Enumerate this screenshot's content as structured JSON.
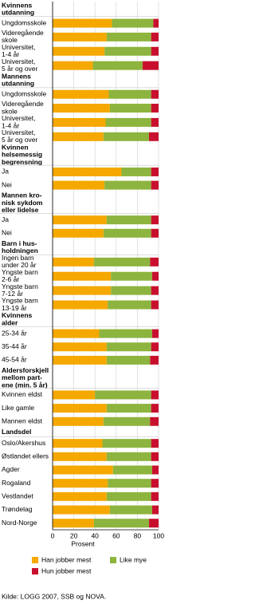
{
  "chart_data": {
    "type": "bar",
    "orientation": "horizontal",
    "stacked": true,
    "xlim": [
      0,
      100
    ],
    "xticks": [
      0,
      20,
      40,
      60,
      80,
      100
    ],
    "xlabel": "Prosent",
    "grid": true,
    "legend": [
      {
        "name": "Han jobber mest",
        "color": "#f5a800"
      },
      {
        "name": "Like mye",
        "color": "#8db43e"
      },
      {
        "name": "Hun jobber mest",
        "color": "#c8102e"
      }
    ],
    "source": "Kilde: LOGG 2007, SSB og NOVA.",
    "groups": [
      {
        "title": [
          "Kvinnens",
          "utdanning"
        ],
        "categories": [
          [
            "Ungdomsskole"
          ],
          [
            "Videregående",
            "skole"
          ],
          [
            "Universitet,",
            "1-4 år"
          ],
          [
            "Universitet,",
            "5 år og over"
          ]
        ],
        "series": [
          [
            56,
            51,
            49,
            38
          ],
          [
            39,
            42,
            44,
            47
          ],
          [
            5,
            7,
            7,
            15
          ]
        ]
      },
      {
        "title": [
          "Mannens",
          "utdanning"
        ],
        "categories": [
          [
            "Ungdomsskole"
          ],
          [
            "Videregående",
            "skole"
          ],
          [
            "Universitet,",
            "1-4 år"
          ],
          [
            "Universitet,",
            "5 år og over"
          ]
        ],
        "series": [
          [
            53,
            54,
            50,
            48
          ],
          [
            40,
            39,
            43,
            43
          ],
          [
            7,
            7,
            7,
            9
          ]
        ]
      },
      {
        "title": [
          "Kvinnen",
          "helsemessig",
          "begrensning"
        ],
        "categories": [
          [
            "Ja"
          ],
          [
            "Nei"
          ]
        ],
        "series": [
          [
            65,
            49
          ],
          [
            28,
            44
          ],
          [
            7,
            7
          ]
        ]
      },
      {
        "title": [
          "Mannen kro-",
          "nisk sykdom",
          "eller lidelse"
        ],
        "categories": [
          [
            "Ja"
          ],
          [
            "Nei"
          ]
        ],
        "series": [
          [
            51,
            48
          ],
          [
            42,
            45
          ],
          [
            7,
            7
          ]
        ]
      },
      {
        "title": [
          "Barn i hus-",
          "holdningen"
        ],
        "categories": [
          [
            "Ingen barn",
            "under 20 år"
          ],
          [
            "Yngste barn",
            "2-6 år"
          ],
          [
            "Yngste barn",
            "7-12 år"
          ],
          [
            "Yngste barn",
            "13-19 år"
          ]
        ],
        "series": [
          [
            39,
            55,
            55,
            52
          ],
          [
            53,
            39,
            38,
            41
          ],
          [
            8,
            6,
            7,
            7
          ]
        ]
      },
      {
        "title": [
          "Kvinnens",
          "alder"
        ],
        "categories": [
          [
            "25-34 år"
          ],
          [
            "35-44 år"
          ],
          [
            "45-54 år"
          ]
        ],
        "series": [
          [
            44,
            51,
            51
          ],
          [
            50,
            42,
            41
          ],
          [
            6,
            7,
            8
          ]
        ]
      },
      {
        "title": [
          "Aldersforskjell",
          "mellom part-",
          "ene (min. 5 år)"
        ],
        "categories": [
          [
            "Kvinnen eldst"
          ],
          [
            "Like gamle"
          ],
          [
            "Mannen eldst"
          ]
        ],
        "series": [
          [
            40,
            51,
            48
          ],
          [
            53,
            42,
            44
          ],
          [
            7,
            7,
            8
          ]
        ]
      },
      {
        "title": [
          "Landsdel"
        ],
        "categories": [
          [
            "Oslo/Akershus"
          ],
          [
            "Østlandet ellers"
          ],
          [
            "Agder"
          ],
          [
            "Rogaland"
          ],
          [
            "Vestlandet"
          ],
          [
            "Trøndelag"
          ],
          [
            "Nord-Norge"
          ]
        ],
        "series": [
          [
            47,
            51,
            57,
            52,
            51,
            54,
            39
          ],
          [
            46,
            42,
            37,
            41,
            42,
            40,
            52
          ],
          [
            7,
            7,
            6,
            7,
            7,
            6,
            9
          ]
        ]
      }
    ]
  }
}
